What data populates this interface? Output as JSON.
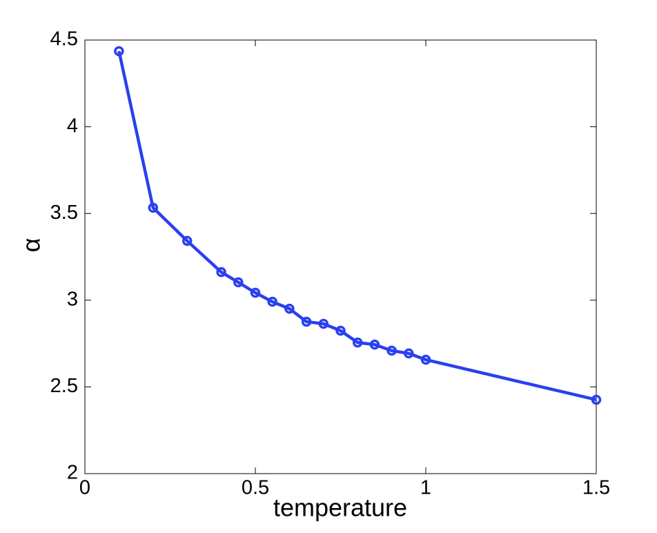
{
  "chart_data": {
    "type": "line",
    "x_label": "temperature",
    "y_label": "α",
    "x": [
      0.1,
      0.2,
      0.3,
      0.4,
      0.45,
      0.5,
      0.55,
      0.6,
      0.65,
      0.7,
      0.75,
      0.8,
      0.85,
      0.9,
      0.95,
      1.0,
      1.5
    ],
    "series": [
      {
        "color": "#2a40ee",
        "values": [
          4.436,
          3.533,
          3.342,
          3.162,
          3.103,
          3.043,
          2.991,
          2.951,
          2.876,
          2.864,
          2.824,
          2.756,
          2.744,
          2.709,
          2.693,
          2.657,
          2.426
        ]
      }
    ],
    "xlim": [
      0,
      1.5
    ],
    "xticks": [
      0,
      0.5,
      1,
      1.5
    ],
    "ylim": [
      2,
      4.5
    ],
    "yticks": [
      2,
      2.5,
      3,
      3.5,
      4,
      4.5
    ],
    "grid": false
  }
}
